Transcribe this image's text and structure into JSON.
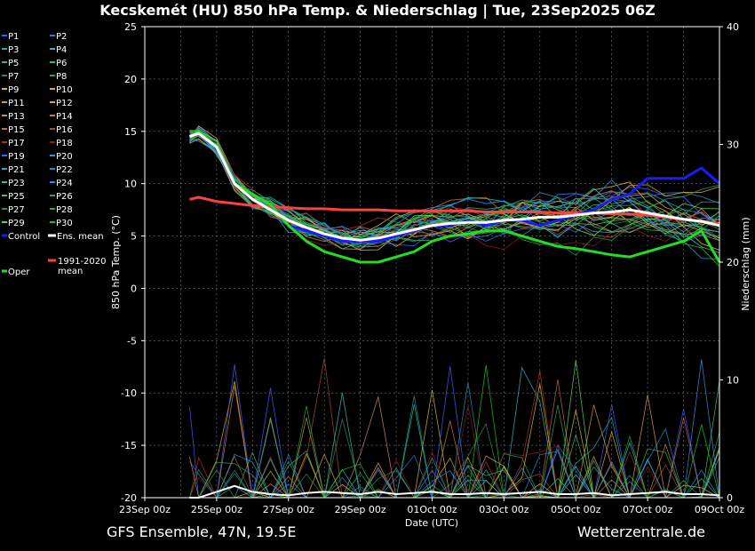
{
  "title": "Kecskemét  (HU)  850 hPa Temp. & Niederschlag | Tue, 23Sep2025 06Z",
  "footer": {
    "left": "GFS Ensemble, 47N, 19.5E",
    "right": "Wetterzentrale.de"
  },
  "colors": {
    "background": "#000000",
    "control": "#1a1aff",
    "ens_mean": "#ffffff",
    "climate_mean": "#ff4040",
    "oper": "#22dd22",
    "members": [
      "#3a5cff",
      "#2e7fd0",
      "#20b2aa",
      "#2ab8c8",
      "#3cb371",
      "#20c080",
      "#2e8b57",
      "#22aa44",
      "#d4c21a",
      "#e0b020",
      "#d2a52a",
      "#e0a050",
      "#c89060",
      "#d07a3a",
      "#c86a4a",
      "#a05030",
      "#b03030",
      "#8b1a1a",
      "#4060ff",
      "#3a8fe0",
      "#30a0c0",
      "#2090b0",
      "#30c0b0",
      "#1e90ff",
      "#40c070",
      "#30a060",
      "#2d8f4e",
      "#20b040",
      "#50e050",
      "#18c818"
    ]
  },
  "chart_data": {
    "type": "line",
    "ylabel_left": "850 hPa Temp. (°C)",
    "ylabel_right": "Niederschlag (mm)",
    "xlabel": "Date (UTC)",
    "ylim_left": [
      -20,
      25
    ],
    "ylim_right": [
      0,
      40
    ],
    "yticks_left": [
      "25",
      "20",
      "15",
      "10",
      "5",
      "0",
      "-5",
      "-10",
      "-15",
      "-20"
    ],
    "yticks_right": [
      "40",
      "30",
      "20",
      "10",
      "0"
    ],
    "xticks": [
      "23Sep 00z",
      "25Sep 00z",
      "27Sep 00z",
      "29Sep 00z",
      "01Oct 00z",
      "03Oct 00z",
      "05Oct 00z",
      "07Oct 00z",
      "09Oct 00z"
    ],
    "x_days_range": [
      0,
      16
    ],
    "grid": true,
    "legend_entries": [
      "P1",
      "P2",
      "P3",
      "P4",
      "P5",
      "P6",
      "P7",
      "P8",
      "P9",
      "P10",
      "P11",
      "P12",
      "P13",
      "P14",
      "P15",
      "P16",
      "P17",
      "P18",
      "P19",
      "P20",
      "P21",
      "P22",
      "P23",
      "P24",
      "P25",
      "P26",
      "P27",
      "P28",
      "P29",
      "P30",
      "Control",
      "Ens. mean",
      "Oper",
      "1991-2020 mean"
    ],
    "legend_placement": "left",
    "time_days": [
      1.25,
      1.5,
      2,
      2.5,
      3,
      3.5,
      4,
      4.5,
      5,
      5.5,
      6,
      6.5,
      7,
      7.5,
      8,
      8.5,
      9,
      9.5,
      10,
      10.5,
      11,
      11.5,
      12,
      12.5,
      13,
      13.5,
      14,
      14.5,
      15,
      15.5,
      16
    ],
    "series": [
      {
        "name": "Control",
        "values": [
          14.5,
          15,
          13.5,
          10,
          9,
          8,
          6,
          5.5,
          5,
          4.5,
          4.5,
          4.5,
          5,
          5.5,
          6,
          6,
          6.5,
          6,
          6.5,
          6.5,
          6,
          6.5,
          7,
          7.5,
          8.5,
          9,
          10.5,
          10.5,
          10.5,
          11.5,
          10
        ]
      },
      {
        "name": "Ens. mean",
        "values": [
          14.5,
          14.8,
          13.5,
          10,
          8.5,
          7.5,
          6.5,
          5.8,
          5.2,
          4.8,
          4.6,
          4.8,
          5.2,
          5.6,
          6,
          6.2,
          6.3,
          6.3,
          6.5,
          6.6,
          6.8,
          6.8,
          7,
          7.2,
          7.3,
          7.5,
          7.2,
          6.9,
          6.6,
          6.4,
          6
        ]
      },
      {
        "name": "Oper",
        "values": [
          14.5,
          15,
          13.5,
          10,
          9,
          8,
          6,
          4.5,
          3.5,
          3,
          2.5,
          2.5,
          3,
          3.5,
          4.5,
          5,
          5.2,
          5.5,
          5.5,
          5,
          4.5,
          4,
          3.8,
          3.5,
          3.2,
          3,
          3.5,
          4,
          4.5,
          5.5,
          2.5
        ]
      },
      {
        "name": "1991-2020 mean",
        "values": [
          8.5,
          8.7,
          8.3,
          8.1,
          7.9,
          7.8,
          7.7,
          7.6,
          7.6,
          7.5,
          7.5,
          7.5,
          7.4,
          7.4,
          7.4,
          7.4,
          7.4,
          7.3,
          7.3,
          7.3,
          7.3,
          7.2,
          7.2,
          7.2,
          7.1,
          7.1,
          7,
          6.8,
          6.6,
          6.4,
          6.2
        ]
      }
    ],
    "precip_series": [
      {
        "name": "Ens. mean",
        "values": [
          0,
          0,
          0.5,
          1,
          0.5,
          0.3,
          0.2,
          0.4,
          0.5,
          0.4,
          0.3,
          0.5,
          0.3,
          0.4,
          0.5,
          0.3,
          0.3,
          0.4,
          0.3,
          0.4,
          0.5,
          0.3,
          0.3,
          0.4,
          0.2,
          0.3,
          0.4,
          0.5,
          0.3,
          0.3,
          0.2
        ]
      }
    ]
  }
}
